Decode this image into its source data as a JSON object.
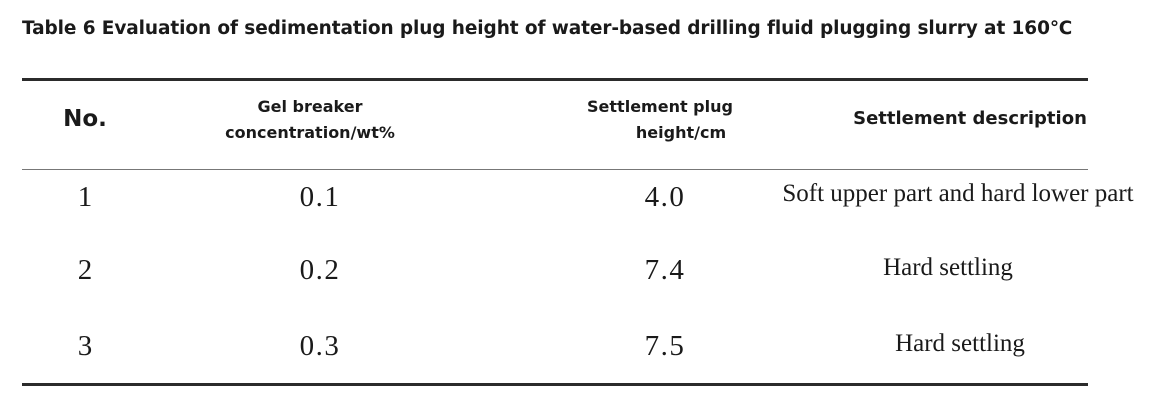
{
  "caption": "Table 6 Evaluation of sedimentation plug height of water-based drilling fluid plugging slurry at 160℃",
  "columns": {
    "no": "No.",
    "concentration_line1": "Gel breaker",
    "concentration_line2": "concentration/wt%",
    "height_line1": "Settlement plug",
    "height_line2": "height/cm",
    "description": "Settlement description"
  },
  "rows": [
    {
      "no": "1",
      "concentration": "0.1",
      "height": "4.0",
      "description": "Soft upper part and hard lower part"
    },
    {
      "no": "2",
      "concentration": "0.2",
      "height": "7.4",
      "description": "Hard settling"
    },
    {
      "no": "3",
      "concentration": "0.3",
      "height": "7.5",
      "description": "Hard settling"
    }
  ]
}
